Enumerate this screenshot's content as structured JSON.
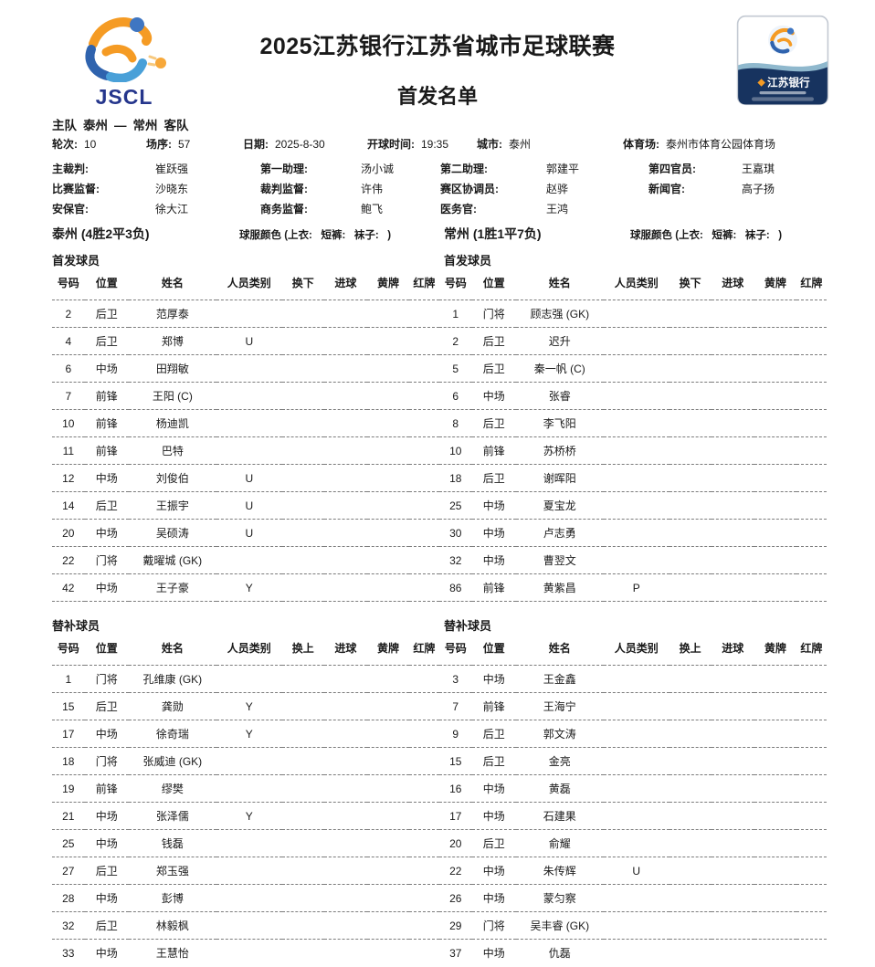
{
  "header": {
    "jscl_text": "JSCL",
    "title": "2025江苏银行江苏省城市足球联赛",
    "subtitle": "首发名单",
    "badge_bank": "江苏银行"
  },
  "match": {
    "home_label": "主队",
    "home": "泰州",
    "dash": "—",
    "away": "常州",
    "away_label": "客队",
    "info": [
      {
        "label": "轮次:",
        "value": "10"
      },
      {
        "label": "场序:",
        "value": "57"
      },
      {
        "label": "日期:",
        "value": "2025-8-30"
      },
      {
        "label": "开球时间:",
        "value": "19:35"
      },
      {
        "label": "城市:",
        "value": "泰州"
      },
      {
        "label": "体育场:",
        "value": "泰州市体育公园体育场"
      }
    ],
    "officials_rows": [
      [
        {
          "label": "主裁判:",
          "value": "崔跃强"
        },
        {
          "label": "第一助理:",
          "value": "汤小诚"
        },
        {
          "label": "第二助理:",
          "value": "郭建平"
        },
        {
          "label": "第四官员:",
          "value": "王嘉琪"
        }
      ],
      [
        {
          "label": "比赛监督:",
          "value": "沙晓东"
        },
        {
          "label": "裁判监督:",
          "value": "许伟"
        },
        {
          "label": "赛区协调员:",
          "value": "赵骅"
        },
        {
          "label": "新闻官:",
          "value": "高子扬"
        }
      ],
      [
        {
          "label": "安保官:",
          "value": "徐大江"
        },
        {
          "label": "商务监督:",
          "value": "鲍飞"
        },
        {
          "label": "医务官:",
          "value": "王鸿"
        },
        {
          "label": "",
          "value": ""
        }
      ]
    ]
  },
  "teams": {
    "home": {
      "title": "泰州 (4胜2平3负)",
      "kit": "球服颜色 (上衣:   短裤:   袜子:   )",
      "starters_label": "首发球员",
      "subs_label": "替补球员"
    },
    "away": {
      "title": "常州 (1胜1平7负)",
      "kit": "球服颜色 (上衣:   短裤:   袜子:   )",
      "starters_label": "首发球员",
      "subs_label": "替补球员"
    }
  },
  "starting": {
    "columns": [
      "号码",
      "位置",
      "姓名",
      "人员类别",
      "换下",
      "进球",
      "黄牌",
      "红牌"
    ],
    "home": [
      [
        "2",
        "后卫",
        "范厚泰",
        "",
        "",
        "",
        "",
        ""
      ],
      [
        "4",
        "后卫",
        "郑博",
        "U",
        "",
        "",
        "",
        ""
      ],
      [
        "6",
        "中场",
        "田翔敏",
        "",
        "",
        "",
        "",
        ""
      ],
      [
        "7",
        "前锋",
        "王阳 (C)",
        "",
        "",
        "",
        "",
        ""
      ],
      [
        "10",
        "前锋",
        "杨迪凯",
        "",
        "",
        "",
        "",
        ""
      ],
      [
        "11",
        "前锋",
        "巴特",
        "",
        "",
        "",
        "",
        ""
      ],
      [
        "12",
        "中场",
        "刘俊伯",
        "U",
        "",
        "",
        "",
        ""
      ],
      [
        "14",
        "后卫",
        "王振宇",
        "U",
        "",
        "",
        "",
        ""
      ],
      [
        "20",
        "中场",
        "吴硕涛",
        "U",
        "",
        "",
        "",
        ""
      ],
      [
        "22",
        "门将",
        "戴曜城 (GK)",
        "",
        "",
        "",
        "",
        ""
      ],
      [
        "42",
        "中场",
        "王子豪",
        "Y",
        "",
        "",
        "",
        ""
      ]
    ],
    "away": [
      [
        "1",
        "门将",
        "顾志强 (GK)",
        "",
        "",
        "",
        "",
        ""
      ],
      [
        "2",
        "后卫",
        "迟升",
        "",
        "",
        "",
        "",
        ""
      ],
      [
        "5",
        "后卫",
        "秦一帆 (C)",
        "",
        "",
        "",
        "",
        ""
      ],
      [
        "6",
        "中场",
        "张睿",
        "",
        "",
        "",
        "",
        ""
      ],
      [
        "8",
        "后卫",
        "李飞阳",
        "",
        "",
        "",
        "",
        ""
      ],
      [
        "10",
        "前锋",
        "苏桥桥",
        "",
        "",
        "",
        "",
        ""
      ],
      [
        "18",
        "后卫",
        "谢晖阳",
        "",
        "",
        "",
        "",
        ""
      ],
      [
        "25",
        "中场",
        "夏宝龙",
        "",
        "",
        "",
        "",
        ""
      ],
      [
        "30",
        "中场",
        "卢志勇",
        "",
        "",
        "",
        "",
        ""
      ],
      [
        "32",
        "中场",
        "曹翌文",
        "",
        "",
        "",
        "",
        ""
      ],
      [
        "86",
        "前锋",
        "黄紫昌",
        "P",
        "",
        "",
        "",
        ""
      ]
    ]
  },
  "subs": {
    "columns": [
      "号码",
      "位置",
      "姓名",
      "人员类别",
      "换上",
      "进球",
      "黄牌",
      "红牌"
    ],
    "home": [
      [
        "1",
        "门将",
        "孔维康 (GK)",
        "",
        "",
        "",
        "",
        ""
      ],
      [
        "15",
        "后卫",
        "龚勋",
        "Y",
        "",
        "",
        "",
        ""
      ],
      [
        "17",
        "中场",
        "徐奇瑞",
        "Y",
        "",
        "",
        "",
        ""
      ],
      [
        "18",
        "门将",
        "张威迪 (GK)",
        "",
        "",
        "",
        "",
        ""
      ],
      [
        "19",
        "前锋",
        "缪樊",
        "",
        "",
        "",
        "",
        ""
      ],
      [
        "21",
        "中场",
        "张泽儒",
        "Y",
        "",
        "",
        "",
        ""
      ],
      [
        "25",
        "中场",
        "钱磊",
        "",
        "",
        "",
        "",
        ""
      ],
      [
        "27",
        "后卫",
        "郑玉强",
        "",
        "",
        "",
        "",
        ""
      ],
      [
        "28",
        "中场",
        "彭博",
        "",
        "",
        "",
        "",
        ""
      ],
      [
        "32",
        "后卫",
        "林毅枫",
        "",
        "",
        "",
        "",
        ""
      ],
      [
        "33",
        "中场",
        "王慧怡",
        "",
        "",
        "",
        "",
        ""
      ]
    ],
    "away": [
      [
        "3",
        "中场",
        "王金鑫",
        "",
        "",
        "",
        "",
        ""
      ],
      [
        "7",
        "前锋",
        "王海宁",
        "",
        "",
        "",
        "",
        ""
      ],
      [
        "9",
        "后卫",
        "郭文涛",
        "",
        "",
        "",
        "",
        ""
      ],
      [
        "15",
        "后卫",
        "金亮",
        "",
        "",
        "",
        "",
        ""
      ],
      [
        "16",
        "中场",
        "黄磊",
        "",
        "",
        "",
        "",
        ""
      ],
      [
        "17",
        "中场",
        "石建果",
        "",
        "",
        "",
        "",
        ""
      ],
      [
        "20",
        "后卫",
        "俞耀",
        "",
        "",
        "",
        "",
        ""
      ],
      [
        "22",
        "中场",
        "朱传辉",
        "U",
        "",
        "",
        "",
        ""
      ],
      [
        "26",
        "中场",
        "蒙匀察",
        "",
        "",
        "",
        "",
        ""
      ],
      [
        "29",
        "门将",
        "吴丰睿 (GK)",
        "",
        "",
        "",
        "",
        ""
      ],
      [
        "37",
        "中场",
        "仇磊",
        "",
        "",
        "",
        "",
        ""
      ]
    ]
  },
  "colors": {
    "accent_orange": "#f59b24",
    "accent_blue": "#2f63ae",
    "navy": "#17335f",
    "logo_navy": "#25368c",
    "rule_gray": "#7c7c7c"
  }
}
